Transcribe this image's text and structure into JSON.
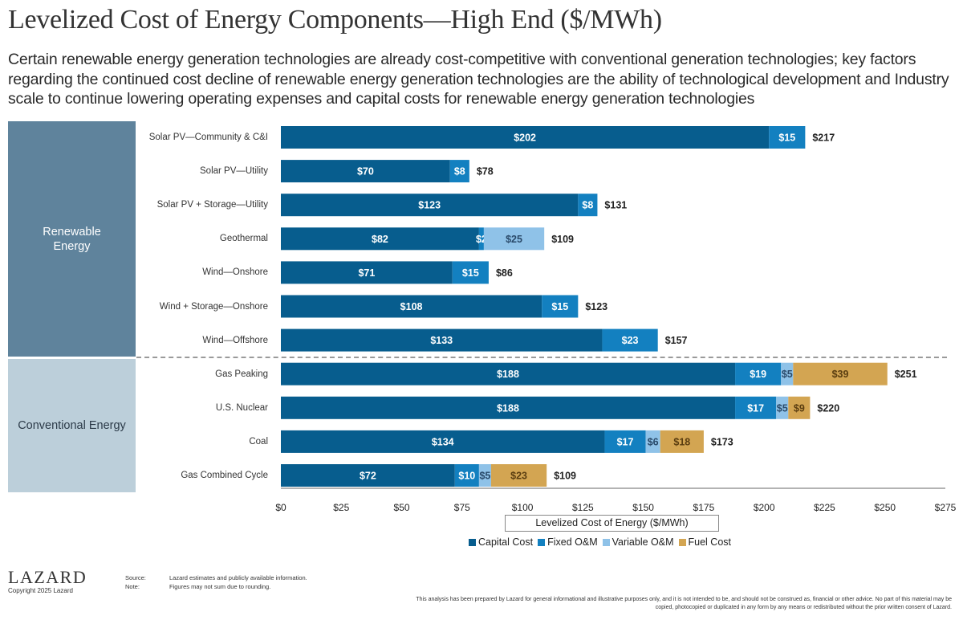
{
  "title": "Levelized Cost of Energy Components—High End ($/MWh)",
  "subtitle": "Certain renewable energy generation technologies are already cost-competitive with conventional generation technologies; key factors regarding the continued cost decline of renewable energy generation technologies are the ability of technological development and Industry scale to continue lowering operating expenses and capital costs for renewable energy generation technologies",
  "groups": {
    "renewable": "Renewable Energy",
    "conventional": "Conventional Energy"
  },
  "colors": {
    "capital": "#075d8e",
    "fixed_om": "#1380c0",
    "variable_om": "#8fc2e8",
    "fuel": "#d3a552"
  },
  "chart_data": {
    "type": "bar",
    "orientation": "horizontal",
    "stacked": true,
    "title": "Levelized Cost of Energy Components—High End ($/MWh)",
    "xlabel": "Levelized Cost of Energy ($/MWh)",
    "ylabel": "",
    "xlim": [
      0,
      275
    ],
    "xticks": [
      0,
      25,
      50,
      75,
      100,
      125,
      150,
      175,
      200,
      225,
      250,
      275
    ],
    "xtick_labels": [
      "$0",
      "$25",
      "$50",
      "$75",
      "$100",
      "$125",
      "$150",
      "$175",
      "$200",
      "$225",
      "$250",
      "$275"
    ],
    "grid": false,
    "legend_position": "bottom-center",
    "categories": [
      "Solar PV—Community & C&I",
      "Solar PV—Utility",
      "Solar PV + Storage—Utility",
      "Geothermal",
      "Wind—Onshore",
      "Wind + Storage—Onshore",
      "Wind—Offshore",
      "Gas Peaking",
      "U.S. Nuclear",
      "Coal",
      "Gas Combined Cycle"
    ],
    "category_groups": [
      "Renewable Energy",
      "Renewable Energy",
      "Renewable Energy",
      "Renewable Energy",
      "Renewable Energy",
      "Renewable Energy",
      "Renewable Energy",
      "Conventional Energy",
      "Conventional Energy",
      "Conventional Energy",
      "Conventional Energy"
    ],
    "series": [
      {
        "name": "Capital Cost",
        "key": "capital",
        "values": [
          202,
          70,
          123,
          82,
          71,
          108,
          133,
          188,
          188,
          134,
          72
        ]
      },
      {
        "name": "Fixed O&M",
        "key": "fixed_om",
        "values": [
          15,
          8,
          8,
          2,
          15,
          15,
          23,
          19,
          17,
          17,
          10
        ]
      },
      {
        "name": "Variable O&M",
        "key": "variable_om",
        "values": [
          0,
          0,
          0,
          25,
          0,
          0,
          0,
          5,
          5,
          6,
          5
        ]
      },
      {
        "name": "Fuel Cost",
        "key": "fuel",
        "values": [
          0,
          0,
          0,
          0,
          0,
          0,
          0,
          39,
          9,
          18,
          23
        ]
      }
    ],
    "totals": [
      217,
      78,
      131,
      109,
      86,
      123,
      157,
      251,
      220,
      173,
      109
    ],
    "total_labels": [
      "$217",
      "$78",
      "$131",
      "$109",
      "$86",
      "$123",
      "$157",
      "$251",
      "$220",
      "$173",
      "$109"
    ]
  },
  "legend": [
    {
      "label": "Capital Cost",
      "key": "capital"
    },
    {
      "label": "Fixed O&M",
      "key": "fixed_om"
    },
    {
      "label": "Variable O&M",
      "key": "variable_om"
    },
    {
      "label": "Fuel Cost",
      "key": "fuel"
    }
  ],
  "footer": {
    "logo": "LAZARD",
    "copyright": "Copyright 2025 Lazard",
    "source_label": "Source:",
    "source_text": "Lazard estimates and publicly available information.",
    "note_label": "Note:",
    "note_text": "Figures may not sum due to rounding.",
    "disclaimer": "This analysis has been prepared by Lazard for general informational and illustrative purposes only, and it is not intended to be, and should not be construed as, financial or other advice. No part of this material may be copied, photocopied or duplicated in any form by any means or redistributed without the prior written consent of Lazard."
  }
}
